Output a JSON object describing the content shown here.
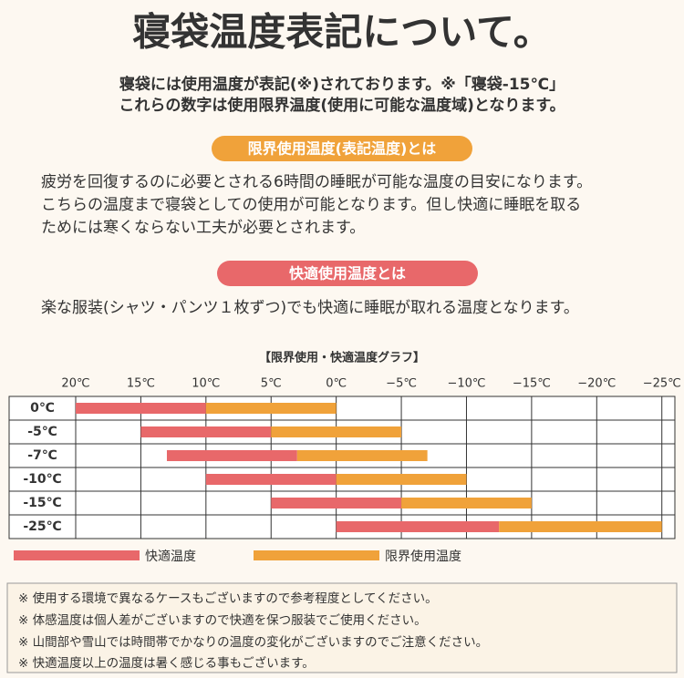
{
  "header": {
    "title": "寝袋温度表記について。",
    "lines": [
      "寝袋には使用温度が表記(※)されております。※「寝袋-15℃」",
      "これらの数字は使用限界温度(使用に可能な温度域)となります。"
    ]
  },
  "sections": [
    {
      "heading": "限界使用温度(表記温度)とは",
      "lines": [
        "疲労を回復するのに必要とされる6時間の睡眠が可能な温度の目安になります。",
        "こちらの温度まで寝袋としての使用が可能となります。但し快適に睡眠を取る",
        "ためには寒くならない工夫が必要とされます。"
      ]
    },
    {
      "heading": "快適使用温度とは",
      "lines": [
        "楽な服装(シャツ・パンツ１枚ずつ)でも快適に睡眠が取れる温度となります。"
      ]
    }
  ],
  "chart_data": {
    "type": "range-bar",
    "title": "【限界使用・快適温度グラフ】",
    "categories": [
      "0℃",
      "-5℃",
      "-7℃",
      "-10℃",
      "-15℃",
      "-25℃"
    ],
    "starts": [
      20,
      15,
      13,
      10,
      5,
      0
    ],
    "series": [
      {
        "name": "快適温度",
        "color": "#e8686a",
        "values": [
          10,
          5,
          3,
          0,
          -5,
          -12.5
        ]
      },
      {
        "name": "限界使用温度",
        "color": "#f0a23a",
        "values": [
          0,
          -5,
          -7,
          -10,
          -15,
          -25
        ]
      }
    ],
    "xlim": [
      20,
      -26
    ],
    "xticks": [
      {
        "value": 20,
        "label": "20℃"
      },
      {
        "value": 15,
        "label": "15℃"
      },
      {
        "value": 10,
        "label": "10℃"
      },
      {
        "value": 5,
        "label": "5℃"
      },
      {
        "value": 0,
        "label": "0℃"
      },
      {
        "value": -5,
        "label": "−5℃"
      },
      {
        "value": -10,
        "label": "−10℃"
      },
      {
        "value": -15,
        "label": "−15℃"
      },
      {
        "value": -20,
        "label": "−20℃"
      },
      {
        "value": -25,
        "label": "−25℃"
      }
    ],
    "grid": true
  },
  "notes": [
    "※ 使用する環境で異なるケースもございますので参考程度としてください。",
    "※ 体感温度は個人差がございますので快適を保つ服装でご使用ください。",
    "※ 山間部や雪山では時間帯でかなりの温度の変化がございますのでご注意ください。",
    "※ 快適温度以上の温度は暑く感じる事もございます。"
  ]
}
